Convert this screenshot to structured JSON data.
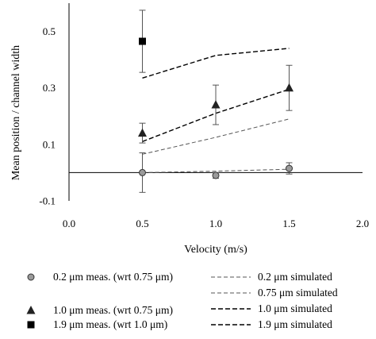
{
  "chart_data": {
    "type": "scatter",
    "xlabel": "Velocity (m/s)",
    "ylabel": "Mean position / channel width",
    "xlim": [
      0.0,
      2.0
    ],
    "ylim": [
      -0.1,
      0.6
    ],
    "xticks": [
      {
        "value": 0.0,
        "label": "0.0"
      },
      {
        "value": 0.5,
        "label": "0.5"
      },
      {
        "value": 1.0,
        "label": "1.0"
      },
      {
        "value": 1.5,
        "label": "1.5"
      },
      {
        "value": 2.0,
        "label": "2.0"
      }
    ],
    "yticks": [
      {
        "value": -0.1,
        "label": "-0.1"
      },
      {
        "value": 0.1,
        "label": "0.1"
      },
      {
        "value": 0.3,
        "label": "0.3"
      },
      {
        "value": 0.5,
        "label": "0.5"
      }
    ],
    "grid": false,
    "legend_position": "bottom",
    "measured_series": [
      {
        "name": "0.2 μm meas. (wrt 0.75 μm)",
        "marker": "circle",
        "color": "#8c8c8c",
        "points": [
          {
            "x": 0.5,
            "y": 0.0,
            "err": 0.07
          },
          {
            "x": 1.0,
            "y": -0.01,
            "err": 0.01
          },
          {
            "x": 1.5,
            "y": 0.015,
            "err": 0.02
          }
        ]
      },
      {
        "name": "1.0 μm meas. (wrt 0.75 μm)",
        "marker": "triangle",
        "color": "#222222",
        "points": [
          {
            "x": 0.5,
            "y": 0.14,
            "err": 0.035
          },
          {
            "x": 1.0,
            "y": 0.24,
            "err": 0.07
          },
          {
            "x": 1.5,
            "y": 0.3,
            "err": 0.08
          }
        ]
      },
      {
        "name": "1.9 μm meas. (wrt 1.0 μm)",
        "marker": "square",
        "color": "#000000",
        "points": [
          {
            "x": 0.5,
            "y": 0.465,
            "err": 0.11
          }
        ]
      }
    ],
    "simulated_series": [
      {
        "name": "0.2 μm simulated",
        "color": "#555555",
        "dash": "5,3",
        "width": 1.0,
        "points": [
          {
            "x": 0.5,
            "y": 0.0
          },
          {
            "x": 1.0,
            "y": 0.005
          },
          {
            "x": 1.5,
            "y": 0.012
          }
        ]
      },
      {
        "name": "0.75 μm simulated",
        "color": "#555555",
        "dash": "5,3",
        "width": 1.0,
        "points": [
          {
            "x": 0.5,
            "y": 0.065
          },
          {
            "x": 1.0,
            "y": 0.125
          },
          {
            "x": 1.5,
            "y": 0.19
          }
        ]
      },
      {
        "name": "1.0 μm simulated",
        "color": "#000000",
        "dash": "6,3",
        "width": 1.4,
        "points": [
          {
            "x": 0.5,
            "y": 0.11
          },
          {
            "x": 1.0,
            "y": 0.21
          },
          {
            "x": 1.5,
            "y": 0.295
          }
        ]
      },
      {
        "name": "1.9 μm simulated",
        "color": "#000000",
        "dash": "6,3",
        "width": 1.4,
        "points": [
          {
            "x": 0.5,
            "y": 0.335
          },
          {
            "x": 1.0,
            "y": 0.415
          },
          {
            "x": 1.5,
            "y": 0.44
          }
        ]
      }
    ]
  }
}
